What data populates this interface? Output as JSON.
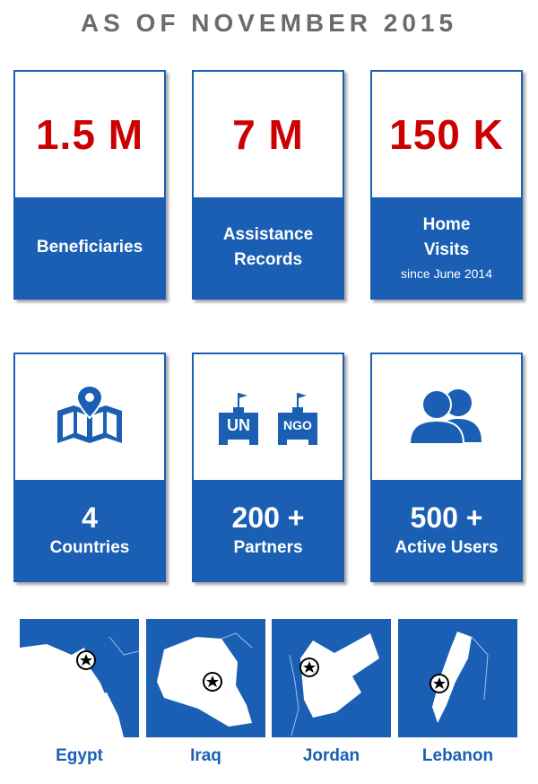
{
  "heading": "AS OF NOVEMBER 2015",
  "stats_row1": [
    {
      "value": "1.5 M",
      "label": "Beneficiaries"
    },
    {
      "value": "7 M",
      "label_line1": "Assistance",
      "label_line2": "Records"
    },
    {
      "value": "150 K",
      "label_line1": "Home",
      "label_line2": "Visits",
      "sublabel": "since June 2014"
    }
  ],
  "stats_row2": [
    {
      "icon": "map-pin-icon",
      "count": "4",
      "label": "Countries"
    },
    {
      "icon": "un-ngo-building-icon",
      "icon_text_1": "UN",
      "icon_text_2": "NGO",
      "count": "200 +",
      "label": "Partners"
    },
    {
      "icon": "users-icon",
      "count": "500 +",
      "label": "Active Users"
    }
  ],
  "countries": [
    {
      "name": "Egypt",
      "icon": "star-marker-icon"
    },
    {
      "name": "Iraq",
      "icon": "star-marker-icon"
    },
    {
      "name": "Jordan",
      "icon": "star-marker-icon"
    },
    {
      "name": "Lebanon",
      "icon": "star-marker-icon"
    }
  ],
  "colors": {
    "accent": "#1a5fb4",
    "highlight": "#cc0000",
    "heading": "#6b6b6b"
  }
}
